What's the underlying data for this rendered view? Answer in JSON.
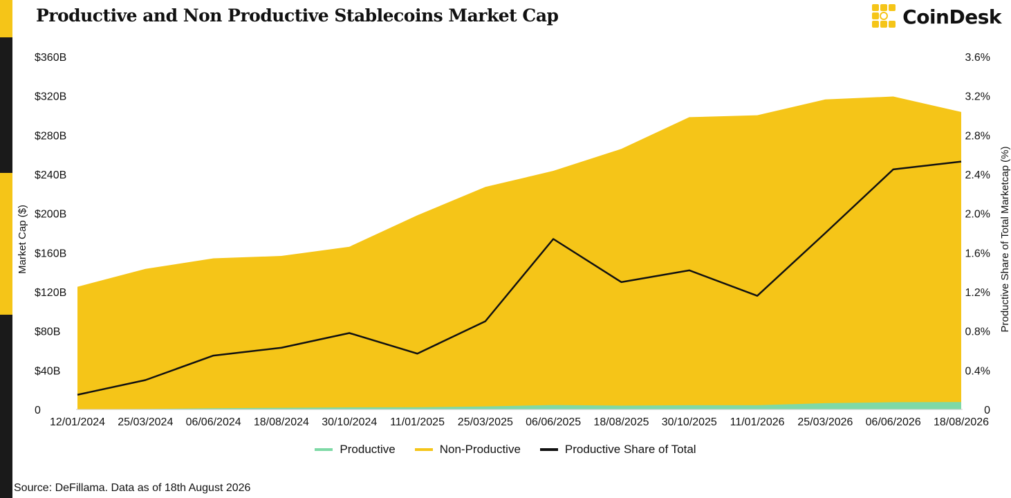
{
  "header": {
    "title": "Productive and Non Productive Stablecoins Market Cap",
    "logo_text": "CoinDesk"
  },
  "footer": {
    "source": "Source: DeFillama. Data as of 18th August 2026"
  },
  "colors": {
    "productive": "#7ed9a6",
    "non_productive": "#f5c518",
    "share_line": "#111111",
    "accent": "#f5c518"
  },
  "chart_data": {
    "type": "area",
    "title": "Productive and Non Productive Stablecoins Market Cap",
    "ylabel": "Market Cap ($)",
    "y2label": "Productive Share of Total Marketcap (%)",
    "ylim": [
      0,
      360
    ],
    "y2lim": [
      0,
      3.6
    ],
    "yticks": [
      "0",
      "$40B",
      "$80B",
      "$120B",
      "$160B",
      "$200B",
      "$240B",
      "$280B",
      "$320B",
      "$360B"
    ],
    "y2ticks": [
      "0",
      "0.4%",
      "0.8%",
      "1.2%",
      "1.6%",
      "2.0%",
      "2.4%",
      "2.8%",
      "3.2%",
      "3.6%"
    ],
    "xticks": [
      "12/01/2024",
      "25/03/2024",
      "06/06/2024",
      "18/08/2024",
      "30/10/2024",
      "11/01/2025",
      "25/03/2025",
      "06/06/2025",
      "18/08/2025",
      "30/10/2025",
      "11/01/2026",
      "25/03/2026",
      "06/06/2026",
      "18/08/2026"
    ],
    "legend_position": "bottom",
    "grid": false,
    "x": [
      "12/01/2024",
      "25/03/2024",
      "06/06/2024",
      "18/08/2024",
      "30/10/2024",
      "11/01/2025",
      "25/03/2025",
      "06/06/2025",
      "18/08/2025",
      "30/10/2025",
      "11/01/2026",
      "25/03/2026",
      "06/06/2026",
      "18/08/2026"
    ],
    "series": [
      {
        "name": "Productive",
        "axis": "left",
        "values": [
          0.2,
          0.5,
          1.2,
          1.7,
          2.1,
          2.2,
          3.1,
          4.5,
          3.9,
          4.3,
          4.3,
          6.4,
          7.4,
          7.6
        ]
      },
      {
        "name": "Non-Productive",
        "axis": "left",
        "values": [
          125,
          143,
          153,
          155,
          164,
          196,
          224,
          239,
          262,
          294,
          296,
          310,
          312,
          296
        ]
      },
      {
        "name": "Productive Share of Total",
        "axis": "right",
        "values": [
          0.15,
          0.3,
          0.55,
          0.63,
          0.78,
          0.57,
          0.9,
          1.74,
          1.3,
          1.42,
          1.16,
          1.8,
          2.45,
          2.53
        ]
      }
    ]
  },
  "legend": {
    "productive": "Productive",
    "non_productive": "Non-Productive",
    "share": "Productive Share of Total"
  }
}
